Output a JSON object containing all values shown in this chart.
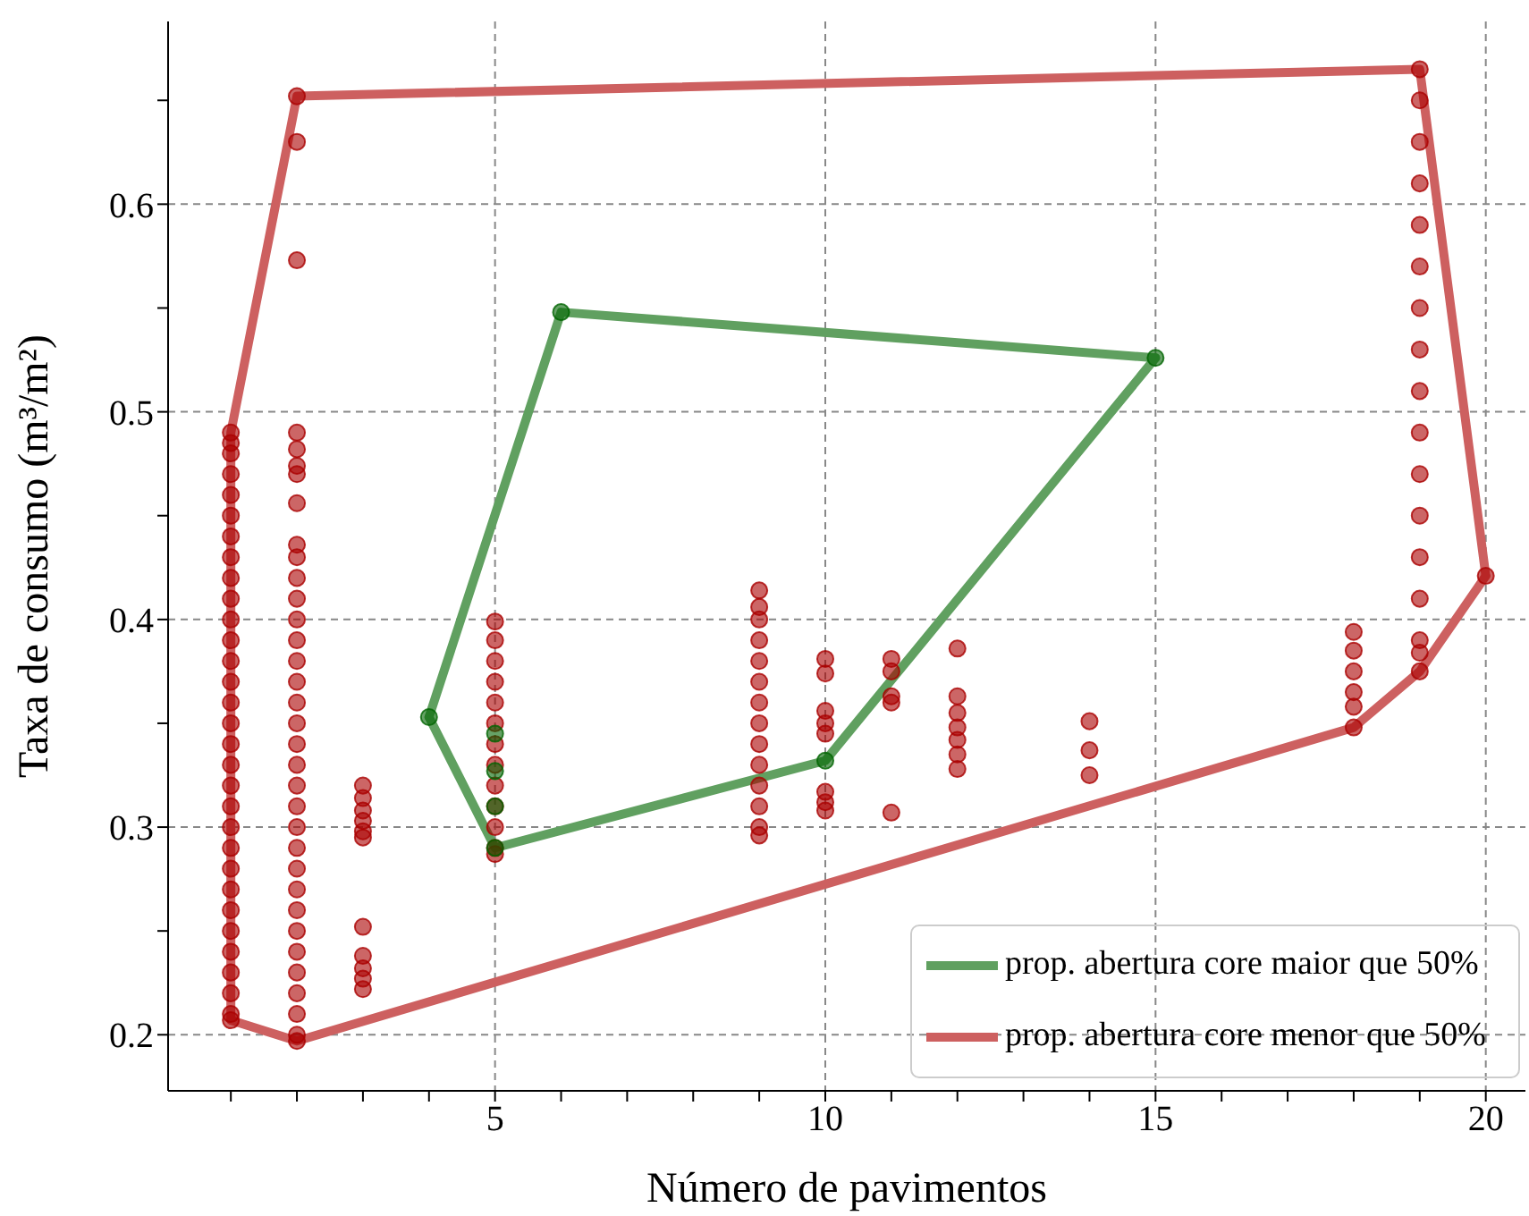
{
  "chart_data": {
    "type": "scatter",
    "xlabel": "Número de pavimentos",
    "ylabel": "Taxa de consumo (m³/m²)",
    "xlim": [
      0.05,
      20.6
    ],
    "xticks": [
      {
        "value": 1,
        "label": null
      },
      {
        "value": 2,
        "label": null
      },
      {
        "value": 3,
        "label": null
      },
      {
        "value": 4,
        "label": null
      },
      5,
      {
        "value": 6,
        "label": null
      },
      {
        "value": 7,
        "label": null
      },
      {
        "value": 8,
        "label": null
      },
      {
        "value": 9,
        "label": null
      },
      10,
      {
        "value": 11,
        "label": null
      },
      {
        "value": 12,
        "label": null
      },
      {
        "value": 13,
        "label": null
      },
      {
        "value": 14,
        "label": null
      },
      15,
      {
        "value": 16,
        "label": null
      },
      {
        "value": 17,
        "label": null
      },
      {
        "value": 18,
        "label": null
      },
      {
        "value": 19,
        "label": null
      },
      20
    ],
    "ylim": [
      0.173,
      0.688
    ],
    "yticks": [
      0.2,
      {
        "value": 0.25,
        "label": null
      },
      0.3,
      {
        "value": 0.35,
        "label": null
      },
      0.4,
      {
        "value": 0.45,
        "label": null
      },
      0.5,
      {
        "value": 0.55,
        "label": null
      },
      0.6,
      {
        "value": 0.65,
        "label": null
      }
    ],
    "grid": true,
    "legend": "bottom right",
    "marker": "circle",
    "series": [
      {
        "color": "#aa0000",
        "x": [
          1,
          1,
          1,
          1,
          1,
          1,
          1,
          1,
          1,
          1,
          1,
          1,
          1,
          1,
          1,
          1,
          1,
          1,
          1,
          1,
          1,
          1,
          1,
          1,
          1,
          1,
          1,
          1,
          1,
          1,
          1,
          2,
          2,
          2,
          2,
          2,
          2,
          2,
          2,
          2,
          2,
          2,
          2,
          2,
          2,
          2,
          2,
          2,
          2,
          2,
          2,
          2,
          2,
          2,
          2,
          2,
          2,
          2,
          2,
          2,
          2,
          2,
          2,
          2,
          2,
          3,
          3,
          3,
          3,
          3,
          3,
          3,
          3,
          3,
          3,
          3,
          5,
          5,
          5,
          5,
          5,
          5,
          5,
          5,
          5,
          5,
          5,
          5,
          5,
          9,
          9,
          9,
          9,
          9,
          9,
          9,
          9,
          9,
          9,
          9,
          9,
          9,
          9,
          10,
          10,
          10,
          10,
          10,
          10,
          10,
          10,
          11,
          11,
          11,
          11,
          11,
          12,
          12,
          12,
          12,
          12,
          12,
          12,
          14,
          14,
          14,
          18,
          18,
          18,
          18,
          18,
          18,
          19,
          19,
          19,
          19,
          19,
          19,
          19,
          19,
          19,
          19,
          19,
          19,
          19,
          19,
          19,
          19,
          19,
          20
        ],
        "values": [
          0.49,
          0.485,
          0.48,
          0.47,
          0.46,
          0.45,
          0.44,
          0.43,
          0.42,
          0.41,
          0.4,
          0.39,
          0.38,
          0.37,
          0.36,
          0.35,
          0.34,
          0.33,
          0.32,
          0.31,
          0.3,
          0.29,
          0.28,
          0.27,
          0.26,
          0.25,
          0.24,
          0.23,
          0.22,
          0.21,
          0.207,
          0.652,
          0.63,
          0.573,
          0.49,
          0.482,
          0.474,
          0.47,
          0.456,
          0.436,
          0.43,
          0.42,
          0.41,
          0.4,
          0.39,
          0.38,
          0.37,
          0.36,
          0.35,
          0.34,
          0.33,
          0.32,
          0.31,
          0.3,
          0.29,
          0.28,
          0.27,
          0.26,
          0.25,
          0.24,
          0.23,
          0.22,
          0.21,
          0.2,
          0.197,
          0.32,
          0.314,
          0.308,
          0.303,
          0.298,
          0.295,
          0.252,
          0.238,
          0.232,
          0.227,
          0.222,
          0.399,
          0.39,
          0.38,
          0.37,
          0.36,
          0.35,
          0.34,
          0.33,
          0.32,
          0.31,
          0.3,
          0.29,
          0.287,
          0.414,
          0.406,
          0.4,
          0.39,
          0.38,
          0.37,
          0.36,
          0.35,
          0.34,
          0.33,
          0.32,
          0.31,
          0.3,
          0.296,
          0.381,
          0.374,
          0.356,
          0.35,
          0.345,
          0.317,
          0.312,
          0.308,
          0.381,
          0.375,
          0.363,
          0.36,
          0.307,
          0.386,
          0.363,
          0.355,
          0.348,
          0.342,
          0.335,
          0.328,
          0.351,
          0.337,
          0.325,
          0.394,
          0.385,
          0.375,
          0.365,
          0.358,
          0.348,
          0.665,
          0.65,
          0.63,
          0.61,
          0.59,
          0.57,
          0.55,
          0.53,
          0.51,
          0.49,
          0.47,
          0.45,
          0.43,
          0.41,
          0.39,
          0.384,
          0.375,
          0.421
        ]
      },
      {
        "color": "#006400",
        "x": [
          4,
          5,
          5,
          5,
          5,
          6,
          10,
          15
        ],
        "values": [
          0.353,
          0.345,
          0.327,
          0.31,
          0.29,
          0.548,
          0.332,
          0.526
        ]
      },
      {
        "type": "line",
        "name": "prop. abertura core menor que 50%",
        "color": "#cd6060",
        "marker": "none",
        "x": [
          1,
          1,
          2,
          19,
          20
        ],
        "values": [
          0.207,
          0.49,
          0.652,
          0.665,
          0.421
        ]
      },
      {
        "type": "line",
        "color": "#cd6060",
        "marker": "none",
        "x": [
          1,
          2,
          18,
          19,
          20
        ],
        "values": [
          0.207,
          0.197,
          0.348,
          0.375,
          0.421
        ]
      },
      {
        "type": "line",
        "name": "prop. abertura core maior que 50%",
        "color": "#60a060",
        "marker": "none",
        "x": [
          4,
          6,
          15
        ],
        "values": [
          0.353,
          0.548,
          0.526
        ]
      },
      {
        "type": "line",
        "color": "#60a060",
        "marker": "none",
        "x": [
          4,
          5,
          10,
          15
        ],
        "values": [
          0.353,
          0.29,
          0.332,
          0.526
        ]
      }
    ]
  }
}
